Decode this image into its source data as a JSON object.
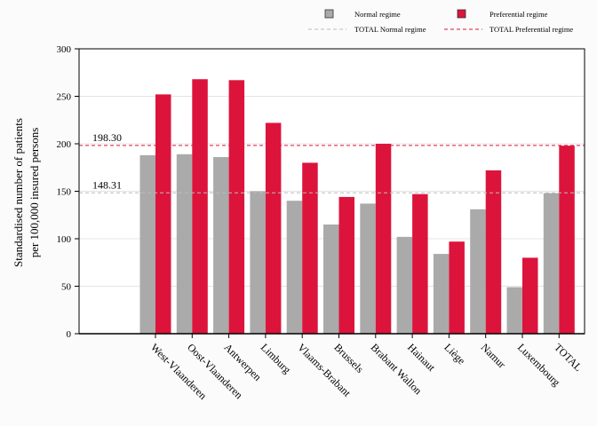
{
  "chart_data": {
    "type": "bar",
    "ylabel_lines": [
      "Standardised number of patients",
      "per 100,000 insured persons"
    ],
    "categories": [
      "West-Vlaanderen",
      "Oost-Vlaanderen",
      "Antwerpen",
      "Limburg",
      "Vlaams-Brabant",
      "Brussels",
      "Brabant Wallon",
      "Hainaut",
      "Liège",
      "Namur",
      "Luxembourg",
      "TOTAL"
    ],
    "series": [
      {
        "name": "Normal regime",
        "color": "#aaaaaa",
        "values": [
          188,
          189,
          186,
          150,
          140,
          115,
          137,
          102,
          84,
          131,
          49,
          148
        ]
      },
      {
        "name": "Preferential regime",
        "color": "#dc143c",
        "values": [
          252,
          268,
          267,
          222,
          180,
          144,
          200,
          147,
          97,
          172,
          80,
          198
        ]
      }
    ],
    "reference_lines": [
      {
        "name": "TOTAL Normal regime",
        "value": 148.31,
        "label": "148.31",
        "color": "#bbbbbb"
      },
      {
        "name": "TOTAL Preferential regime",
        "value": 198.3,
        "label": "198.30",
        "color": "#dc143c"
      }
    ],
    "ylim": [
      0,
      300
    ],
    "yticks": [
      0,
      50,
      100,
      150,
      200,
      250,
      300
    ],
    "grid": true,
    "legend_position": "top-right"
  }
}
